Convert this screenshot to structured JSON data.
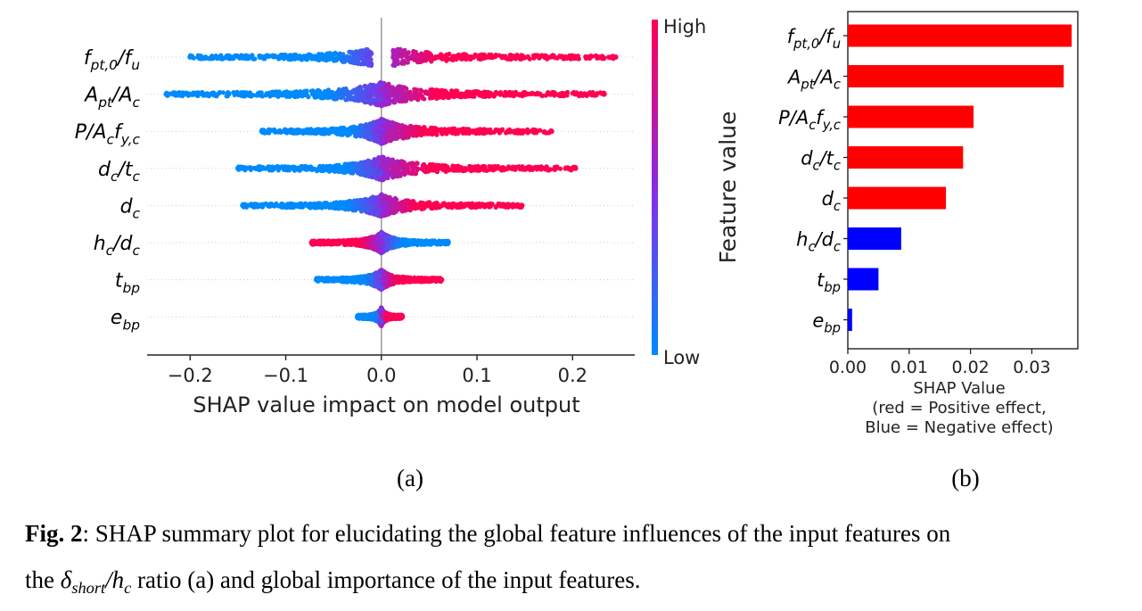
{
  "chart_data": [
    {
      "type": "scatter",
      "subtype": "shap-beeswarm",
      "panel_label": "(a)",
      "xlabel": "SHAP value impact on model output",
      "xlim": [
        -0.245,
        0.265
      ],
      "xticks": [
        -0.2,
        -0.1,
        0.0,
        0.1,
        0.2
      ],
      "xtick_labels": [
        "−0.2",
        "−0.1",
        "0.0",
        "0.1",
        "0.2"
      ],
      "grid": false,
      "colorbar": {
        "high_label": "High",
        "low_label": "Low",
        "high_color": "#ff0052",
        "low_color": "#008afb",
        "mid_color": "#8a2be2",
        "title": "Feature value"
      },
      "features": [
        {
          "label": "f_{pt,0}/f_u",
          "min": -0.2,
          "max": 0.245,
          "gap": [
            -0.01,
            0.012
          ],
          "dense_left": -0.05,
          "dense_right": 0.1
        },
        {
          "label": "A_{pt}/A_c",
          "min": -0.225,
          "max": 0.233,
          "gap": null,
          "dense_left": -0.06,
          "dense_right": 0.12
        },
        {
          "label": "P/A_cf_{y,c}",
          "min": -0.125,
          "max": 0.178,
          "gap": null,
          "dense_left": -0.04,
          "dense_right": 0.09
        },
        {
          "label": "d_c/t_c",
          "min": -0.15,
          "max": 0.203,
          "gap": null,
          "dense_left": -0.05,
          "dense_right": 0.1
        },
        {
          "label": "d_c",
          "min": -0.145,
          "max": 0.147,
          "gap": null,
          "dense_left": -0.04,
          "dense_right": 0.07
        },
        {
          "label": "h_c/d_c",
          "min": -0.073,
          "max": 0.07,
          "gap": null,
          "dense_left": -0.03,
          "dense_right": 0.035
        },
        {
          "label": "t_{bp}",
          "min": -0.068,
          "max": 0.063,
          "gap": null,
          "dense_left": -0.03,
          "dense_right": 0.03
        },
        {
          "label": "e_{bp}",
          "min": -0.025,
          "max": 0.022,
          "gap": null,
          "dense_left": -0.01,
          "dense_right": 0.015
        }
      ]
    },
    {
      "type": "bar",
      "orientation": "horizontal",
      "panel_label": "(b)",
      "categories": [
        "f_{pt,0}/f_u",
        "A_{pt}/A_c",
        "P/A_cf_{y,c}",
        "d_c/t_c",
        "d_c",
        "h_c/d_c",
        "t_{bp}",
        "e_{bp}"
      ],
      "values": [
        0.0365,
        0.0352,
        0.0205,
        0.0188,
        0.016,
        0.0087,
        0.005,
        0.0007
      ],
      "colors": [
        "#ff0000",
        "#ff0000",
        "#ff0000",
        "#ff0000",
        "#ff0000",
        "#0000ff",
        "#0000ff",
        "#0000ff"
      ],
      "xlabel": "SHAP Value",
      "xlabel_note_1": "(red = Positive effect,",
      "xlabel_note_2": "Blue = Negative effect)",
      "ylabel": "Feature value",
      "xlim": [
        0.0,
        0.0375
      ],
      "xticks": [
        0.0,
        0.01,
        0.02,
        0.03
      ],
      "xtick_labels": [
        "0.00",
        "0.01",
        "0.02",
        "0.03"
      ]
    }
  ],
  "caption": {
    "fig_label": "Fig. 2",
    "text_1": ": SHAP summary plot for elucidating the global feature influences of the input features on",
    "text_2_pre": "the ",
    "delta": "δ",
    "delta_sub": "short",
    "slash_h": "/h",
    "h_sub": "c",
    "text_2_post": " ratio (a) and global importance of the input features."
  }
}
